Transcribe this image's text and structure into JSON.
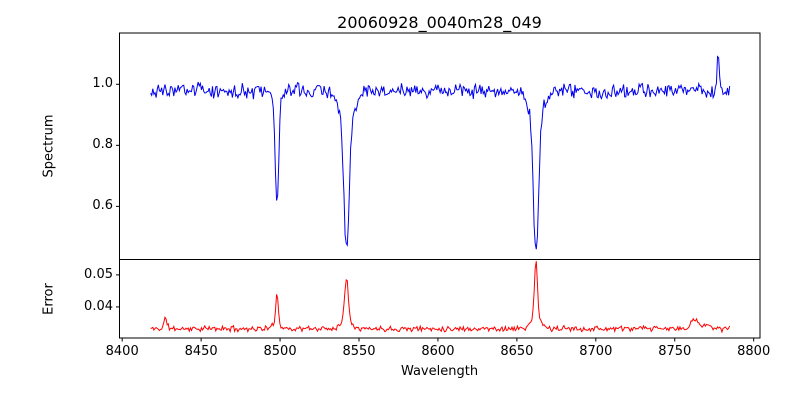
{
  "figure": {
    "title": "20060928_0040m28_049",
    "background": "#ffffff",
    "text_color": "#000000",
    "spine_color": "#000000"
  },
  "x_axis": {
    "label": "Wavelength",
    "lim": [
      8398.3,
      8804.0
    ],
    "ticks": [
      8400,
      8450,
      8500,
      8550,
      8600,
      8650,
      8700,
      8750,
      8800
    ],
    "tick_labels": [
      "8400",
      "8450",
      "8500",
      "8550",
      "8600",
      "8650",
      "8700",
      "8750",
      "8800"
    ]
  },
  "chart_data": [
    {
      "type": "line",
      "name": "spectrum",
      "ylabel": "Spectrum",
      "line_color": "#0000ee",
      "xlim": [
        8398.3,
        8804.0
      ],
      "ylim": [
        0.426,
        1.168
      ],
      "yticks": [
        0.6,
        0.8,
        1.0
      ],
      "ytick_labels": [
        "0.6",
        "0.8",
        "1.0"
      ],
      "x_start": 8418,
      "x_end": 8785,
      "x_step": 0.7,
      "continuum": 0.978,
      "noise_amplitude": 0.02,
      "noise_seed": 3,
      "absorption_lines": [
        {
          "center": 8498.0,
          "depth": 0.345,
          "sigma": 1.0
        },
        {
          "center": 8498.0,
          "depth": 0.045,
          "sigma": 2.8
        },
        {
          "center": 8542.1,
          "depth": 0.42,
          "sigma": 1.6
        },
        {
          "center": 8542.1,
          "depth": 0.095,
          "sigma": 4.5
        },
        {
          "center": 8662.1,
          "depth": 0.43,
          "sigma": 1.6
        },
        {
          "center": 8662.1,
          "depth": 0.095,
          "sigma": 4.5
        }
      ],
      "emission_spikes": [
        {
          "center": 8777.5,
          "height": 0.115,
          "sigma": 0.8
        }
      ]
    },
    {
      "type": "line",
      "name": "error",
      "ylabel": "Error",
      "line_color": "#ff0000",
      "xlim": [
        8398.3,
        8804.0
      ],
      "ylim": [
        0.0303,
        0.0548
      ],
      "yticks": [
        0.04,
        0.05
      ],
      "ytick_labels": [
        "0.04",
        "0.05"
      ],
      "x_start": 8418,
      "x_end": 8785,
      "x_step": 0.7,
      "baseline": 0.0332,
      "noise_amplitude": 0.0007,
      "noise_seed": 11,
      "spikes": [
        {
          "center": 8427.5,
          "height": 0.0032,
          "sigma": 1.0
        },
        {
          "center": 8498.0,
          "height": 0.0095,
          "sigma": 0.8
        },
        {
          "center": 8498.0,
          "height": 0.0015,
          "sigma": 2.5
        },
        {
          "center": 8542.1,
          "height": 0.0135,
          "sigma": 1.1
        },
        {
          "center": 8542.1,
          "height": 0.0028,
          "sigma": 3.5
        },
        {
          "center": 8662.1,
          "height": 0.017,
          "sigma": 0.9
        },
        {
          "center": 8662.1,
          "height": 0.004,
          "sigma": 3.0
        },
        {
          "center": 8763.0,
          "height": 0.0028,
          "sigma": 2.5
        },
        {
          "center": 8771.0,
          "height": 0.002,
          "sigma": 1.5
        }
      ]
    }
  ]
}
